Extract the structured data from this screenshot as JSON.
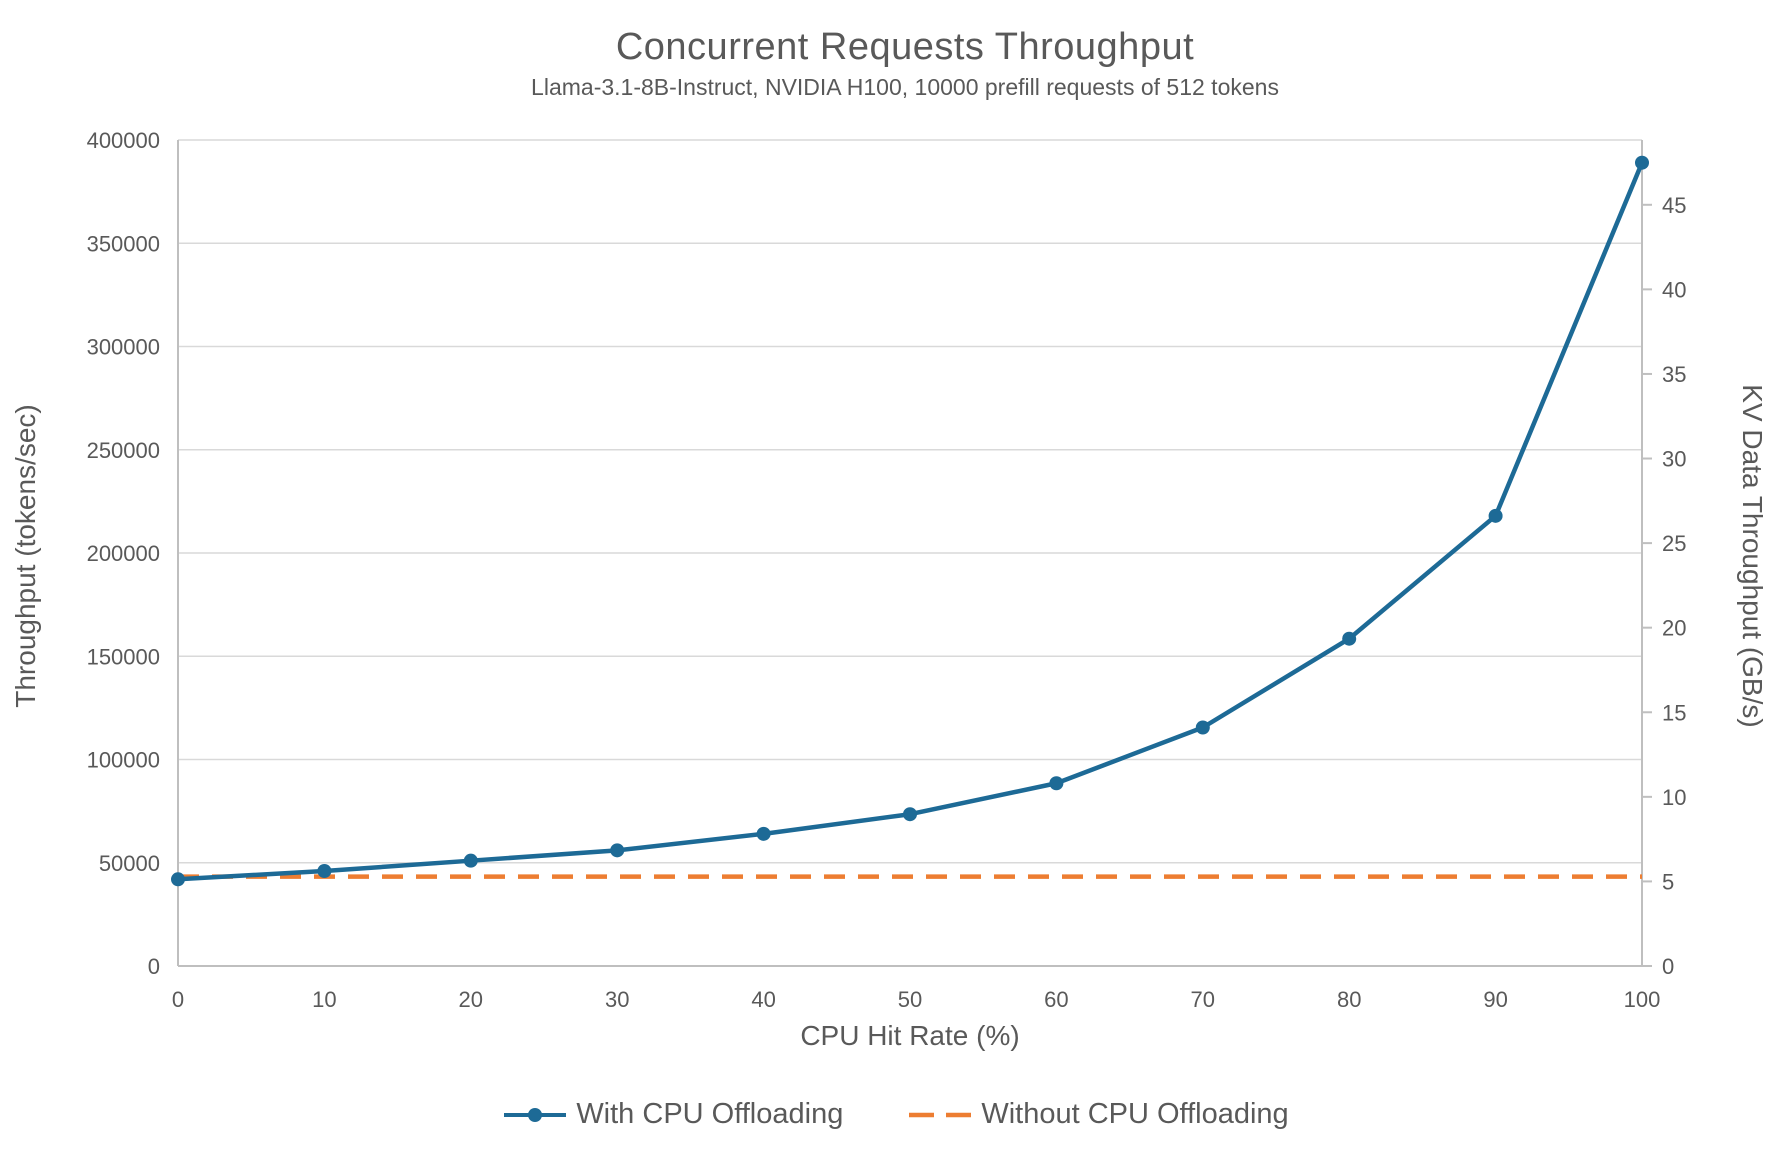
{
  "chart_data": {
    "type": "line",
    "title": "Concurrent Requests Throughput",
    "subtitle": "Llama-3.1-8B-Instruct, NVIDIA H100, 10000 prefill requests of 512 tokens",
    "xlabel": "CPU Hit Rate (%)",
    "ylabel_left": "Throughput (tokens/sec)",
    "ylabel_right": "KV Data Throughput (GB/s)",
    "xlim": [
      0,
      100
    ],
    "ylim_left": [
      0,
      400000
    ],
    "ylim_right": [
      0,
      48.83
    ],
    "x_ticks": [
      0,
      10,
      20,
      30,
      40,
      50,
      60,
      70,
      80,
      90,
      100
    ],
    "y_ticks_left": [
      0,
      50000,
      100000,
      150000,
      200000,
      250000,
      300000,
      350000,
      400000
    ],
    "y_ticks_right": [
      0,
      5,
      10,
      15,
      20,
      25,
      30,
      35,
      40,
      45
    ],
    "grid": true,
    "legend_position": "bottom",
    "series": [
      {
        "name": "With CPU Offloading",
        "style": "solid-line-with-markers",
        "color": "#1D6A96",
        "x": [
          0,
          10,
          20,
          30,
          40,
          50,
          60,
          70,
          80,
          90,
          100
        ],
        "values": [
          42000,
          46000,
          51000,
          56000,
          64000,
          73500,
          88500,
          115500,
          158500,
          218000,
          389000
        ]
      },
      {
        "name": "Without CPU Offloading",
        "style": "dashed-constant-line",
        "color": "#ED7D31",
        "value": 43300
      }
    ],
    "grid_color": "#D9D9D9",
    "axis_line_color": "#BFBFBF",
    "text_color": "#595959"
  }
}
